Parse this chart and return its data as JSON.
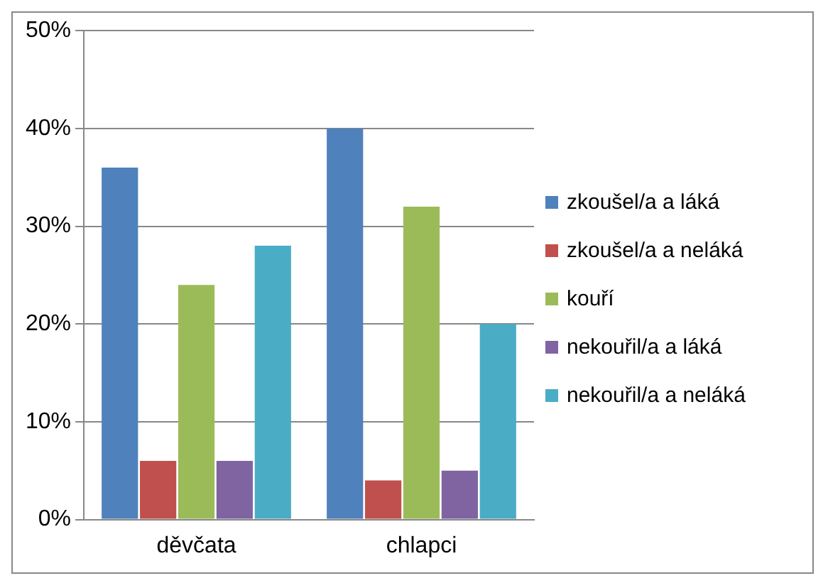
{
  "chart_data": {
    "type": "bar",
    "categories": [
      "děvčata",
      "chlapci"
    ],
    "series": [
      {
        "name": "zkoušel/a a láká",
        "color": "#4f81bd",
        "values": [
          36,
          40
        ]
      },
      {
        "name": "zkoušel/a a neláká",
        "color": "#c0504d",
        "values": [
          6,
          4
        ]
      },
      {
        "name": "kouří",
        "color": "#9bbb59",
        "values": [
          24,
          32
        ]
      },
      {
        "name": "nekouřil/a a láká",
        "color": "#8064a2",
        "values": [
          6,
          5
        ]
      },
      {
        "name": "nekouřil/a a neláká",
        "color": "#4bacc6",
        "values": [
          28,
          20
        ]
      }
    ],
    "ylim": [
      0,
      50
    ],
    "yticks": [
      {
        "value": 0,
        "label": "0%"
      },
      {
        "value": 10,
        "label": "10%"
      },
      {
        "value": 20,
        "label": "20%"
      },
      {
        "value": 30,
        "label": "30%"
      },
      {
        "value": 40,
        "label": "40%"
      },
      {
        "value": 50,
        "label": "50%"
      }
    ],
    "grid": "y",
    "legend": "right"
  }
}
